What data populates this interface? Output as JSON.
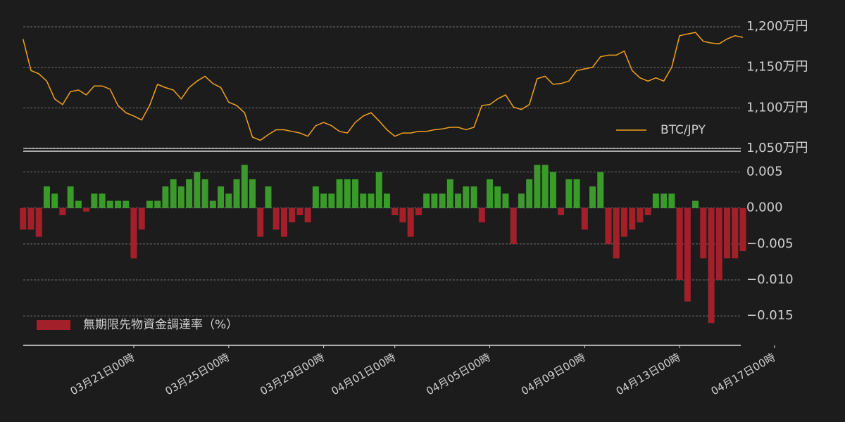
{
  "chart_data": [
    {
      "type": "line",
      "x": [
        "03-16 08",
        "03-16 16",
        "03-17 00",
        "03-17 08",
        "03-17 16",
        "03-18 00",
        "03-18 08",
        "03-18 16",
        "03-19 00",
        "03-19 08",
        "03-19 16",
        "03-20 00",
        "03-20 08",
        "03-20 16",
        "03-21 00",
        "03-21 08",
        "03-21 16",
        "03-22 00",
        "03-22 08",
        "03-22 16",
        "03-23 00",
        "03-23 08",
        "03-23 16",
        "03-24 00",
        "03-24 08",
        "03-24 16",
        "03-25 00",
        "03-25 08",
        "03-25 16",
        "03-26 00",
        "03-26 08",
        "03-26 16",
        "03-27 00",
        "03-27 08",
        "03-27 16",
        "03-28 00",
        "03-28 08",
        "03-28 16",
        "03-29 00",
        "03-29 08",
        "03-29 16",
        "03-30 00",
        "03-30 08",
        "03-30 16",
        "03-31 00",
        "03-31 08",
        "03-31 16",
        "04-01 00",
        "04-01 08",
        "04-01 16",
        "04-02 00",
        "04-02 08",
        "04-02 16",
        "04-03 00",
        "04-03 08",
        "04-03 16",
        "04-04 00",
        "04-04 08",
        "04-04 16",
        "04-05 00",
        "04-05 08",
        "04-05 16",
        "04-06 00",
        "04-06 08",
        "04-06 16",
        "04-07 00",
        "04-07 08",
        "04-07 16",
        "04-08 00",
        "04-08 08",
        "04-08 16",
        "04-09 00",
        "04-09 08",
        "04-09 16",
        "04-10 00",
        "04-10 08",
        "04-10 16",
        "04-11 00",
        "04-11 08",
        "04-11 16",
        "04-12 00",
        "04-12 08",
        "04-12 16",
        "04-13 00",
        "04-13 08",
        "04-13 16",
        "04-14 00",
        "04-14 08",
        "04-14 16",
        "04-15 00",
        "04-15 08",
        "04-15 16"
      ],
      "series": [
        {
          "name": "BTC/JPY",
          "color": "#f0a020",
          "values": [
            1185,
            1146,
            1142,
            1133,
            1111,
            1104,
            1120,
            1122,
            1116,
            1127,
            1127,
            1123,
            1103,
            1094,
            1090,
            1085,
            1103,
            1129,
            1125,
            1122,
            1111,
            1125,
            1133,
            1139,
            1130,
            1125,
            1107,
            1103,
            1094,
            1064,
            1060,
            1067,
            1073,
            1073,
            1071,
            1069,
            1065,
            1078,
            1082,
            1078,
            1071,
            1069,
            1082,
            1090,
            1094,
            1084,
            1073,
            1065,
            1069,
            1069,
            1071,
            1071,
            1073,
            1074,
            1076,
            1076,
            1073,
            1076,
            1103,
            1104,
            1111,
            1116,
            1101,
            1098,
            1104,
            1136,
            1139,
            1129,
            1130,
            1133,
            1146,
            1148,
            1150,
            1163,
            1165,
            1165,
            1170,
            1146,
            1137,
            1133,
            1137,
            1133,
            1150,
            1189,
            1191,
            1193,
            1182,
            1180,
            1179,
            1185,
            1189,
            1187
          ]
        }
      ],
      "ylim": [
        1050,
        1207
      ],
      "yticks": [
        {
          "value": 1050,
          "label": "1,050万円"
        },
        {
          "value": 1100,
          "label": "1,100万円"
        },
        {
          "value": 1150,
          "label": "1,150万円"
        },
        {
          "value": 1200,
          "label": "1,200万円"
        }
      ],
      "grid": true,
      "legend": "lower-right"
    },
    {
      "type": "bar",
      "x": [
        "03-16 08",
        "03-16 16",
        "03-17 00",
        "03-17 08",
        "03-17 16",
        "03-18 00",
        "03-18 08",
        "03-18 16",
        "03-19 00",
        "03-19 08",
        "03-19 16",
        "03-20 00",
        "03-20 08",
        "03-20 16",
        "03-21 00",
        "03-21 08",
        "03-21 16",
        "03-22 00",
        "03-22 08",
        "03-22 16",
        "03-23 00",
        "03-23 08",
        "03-23 16",
        "03-24 00",
        "03-24 08",
        "03-24 16",
        "03-25 00",
        "03-25 08",
        "03-25 16",
        "03-26 00",
        "03-26 08",
        "03-26 16",
        "03-27 00",
        "03-27 08",
        "03-27 16",
        "03-28 00",
        "03-28 08",
        "03-28 16",
        "03-29 00",
        "03-29 08",
        "03-29 16",
        "03-30 00",
        "03-30 08",
        "03-30 16",
        "03-31 00",
        "03-31 08",
        "03-31 16",
        "04-01 00",
        "04-01 08",
        "04-01 16",
        "04-02 00",
        "04-02 08",
        "04-02 16",
        "04-03 00",
        "04-03 08",
        "04-03 16",
        "04-04 00",
        "04-04 08",
        "04-04 16",
        "04-05 00",
        "04-05 08",
        "04-05 16",
        "04-06 00",
        "04-06 08",
        "04-06 16",
        "04-07 00",
        "04-07 08",
        "04-07 16",
        "04-08 00",
        "04-08 08",
        "04-08 16",
        "04-09 00",
        "04-09 08",
        "04-09 16",
        "04-10 00",
        "04-10 08",
        "04-10 16",
        "04-11 00",
        "04-11 08",
        "04-11 16",
        "04-12 00",
        "04-12 08",
        "04-12 16",
        "04-13 00",
        "04-13 08",
        "04-13 16",
        "04-14 00",
        "04-14 08",
        "04-14 16",
        "04-15 00",
        "04-15 08",
        "04-15 16"
      ],
      "series": [
        {
          "name": "無期限先物資金調達率（%）",
          "color": "#a3202a",
          "positive_color": "#3a9a2a",
          "values": [
            -0.003,
            -0.003,
            -0.004,
            0.003,
            0.002,
            -0.001,
            0.003,
            0.001,
            -0.0005,
            0.002,
            0.002,
            0.001,
            0.001,
            0.001,
            -0.007,
            -0.003,
            0.001,
            0.001,
            0.003,
            0.004,
            0.003,
            0.004,
            0.005,
            0.004,
            0.001,
            0.003,
            0.002,
            0.004,
            0.006,
            0.004,
            -0.004,
            0.003,
            -0.003,
            -0.004,
            -0.002,
            -0.001,
            -0.002,
            0.003,
            0.002,
            0.002,
            0.004,
            0.004,
            0.004,
            0.002,
            0.002,
            0.005,
            0.002,
            -0.001,
            -0.002,
            -0.004,
            -0.001,
            0.002,
            0.002,
            0.002,
            0.004,
            0.002,
            0.003,
            0.003,
            -0.002,
            0.004,
            0.003,
            0.002,
            -0.005,
            0.002,
            0.004,
            0.006,
            0.006,
            0.005,
            -0.001,
            0.004,
            0.004,
            -0.003,
            0.003,
            0.005,
            -0.005,
            -0.007,
            -0.004,
            -0.003,
            -0.002,
            -0.001,
            0.002,
            0.002,
            0.002,
            -0.01,
            -0.013,
            0.001,
            -0.007,
            -0.016,
            -0.01,
            -0.007,
            -0.007,
            -0.006
          ]
        }
      ],
      "ylim": [
        -0.019,
        0.0078
      ],
      "yticks": [
        {
          "value": -0.015,
          "label": "−0.015"
        },
        {
          "value": -0.01,
          "label": "−0.010"
        },
        {
          "value": -0.005,
          "label": "−0.005"
        },
        {
          "value": 0,
          "label": "0.000"
        },
        0.005
      ],
      "xticks": [
        {
          "value": "03-21 00",
          "label": "03月21日00時"
        },
        {
          "value": "03-25 00",
          "label": "03月25日00時"
        },
        {
          "value": "03-29 00",
          "label": "03月29日00時"
        },
        {
          "value": "04-01 00",
          "label": "04月01日00時"
        },
        {
          "value": "04-05 00",
          "label": "04月05日00時"
        },
        {
          "value": "04-09 00",
          "label": "04月09日00時"
        },
        {
          "value": "04-13 00",
          "label": "04月13日00時"
        },
        {
          "value": "04-17 00",
          "label": "04月17日00時"
        }
      ],
      "grid": true,
      "legend": "lower-left"
    }
  ]
}
